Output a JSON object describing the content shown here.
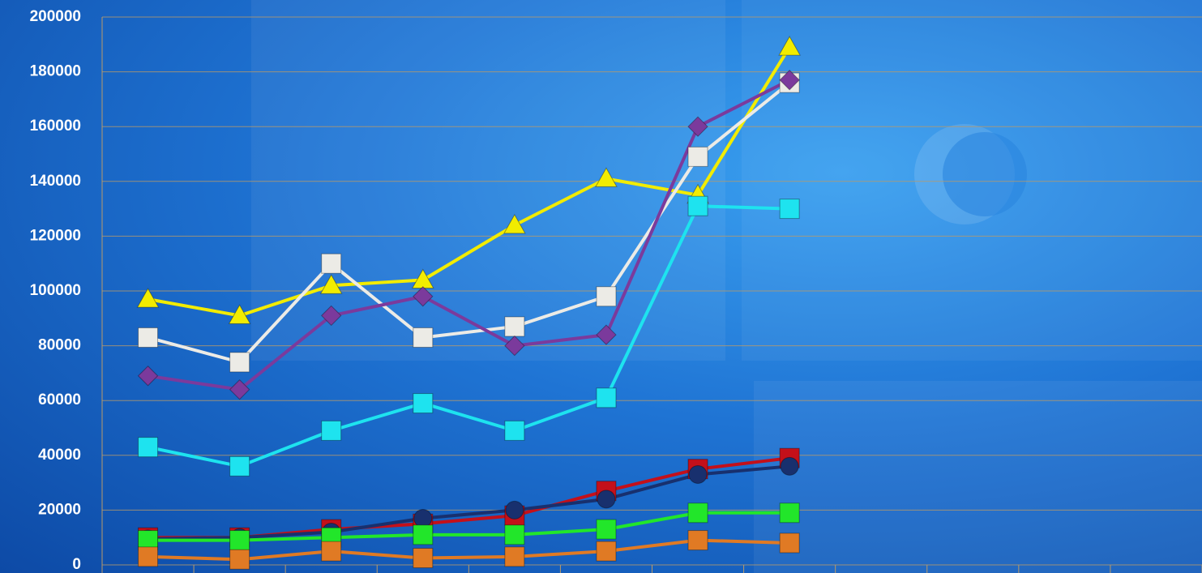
{
  "chart_data": {
    "type": "line",
    "categories": [
      null,
      null,
      null,
      null,
      null,
      null,
      null,
      null,
      null,
      null,
      null,
      null
    ],
    "ylim": [
      0,
      200000
    ],
    "yticks": [
      0,
      20000,
      40000,
      60000,
      80000,
      100000,
      120000,
      140000,
      160000,
      180000,
      200000
    ],
    "grid": true,
    "series": [
      {
        "color": "#f2ec00",
        "marker": "triangle",
        "values": [
          97000,
          91000,
          102000,
          104000,
          124000,
          141000,
          135000,
          189000,
          null,
          null,
          null,
          null
        ]
      },
      {
        "color": "#ecebe6",
        "marker": "square",
        "values": [
          83000,
          74000,
          110000,
          83000,
          87000,
          98000,
          149000,
          176000,
          null,
          null,
          null,
          null
        ]
      },
      {
        "color": "#7b3a9c",
        "marker": "diamond",
        "values": [
          69000,
          64000,
          91000,
          98000,
          80000,
          84000,
          160000,
          177000,
          null,
          null,
          null,
          null
        ]
      },
      {
        "color": "#1ee3ef",
        "marker": "square",
        "values": [
          43000,
          36000,
          49000,
          59000,
          49000,
          61000,
          131000,
          130000,
          null,
          null,
          null,
          null
        ]
      },
      {
        "color": "#c4101a",
        "marker": "square",
        "values": [
          10000,
          10000,
          13000,
          15000,
          18000,
          27000,
          35000,
          39000,
          null,
          null,
          null,
          null
        ]
      },
      {
        "color": "#18306e",
        "marker": "circle",
        "values": [
          9500,
          10000,
          12000,
          17000,
          20000,
          24000,
          33000,
          36000,
          null,
          null,
          null,
          null
        ]
      },
      {
        "color": "#22e62a",
        "marker": "square",
        "values": [
          9000,
          9000,
          10000,
          11000,
          11000,
          13000,
          19000,
          19000,
          null,
          null,
          null,
          null
        ]
      },
      {
        "color": "#e07a24",
        "marker": "square",
        "values": [
          3000,
          2000,
          5000,
          2500,
          3000,
          5000,
          9000,
          8000,
          null,
          null,
          null,
          null
        ]
      }
    ]
  }
}
